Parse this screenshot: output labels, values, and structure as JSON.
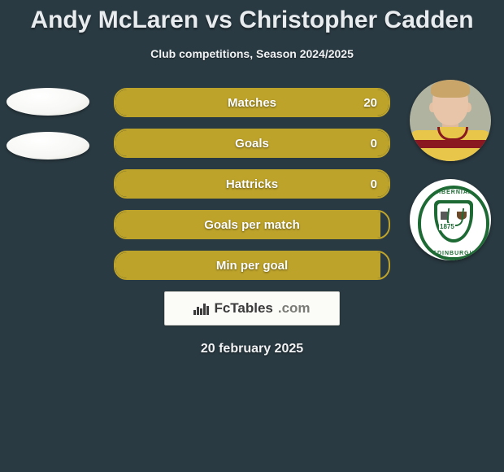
{
  "title": "Andy McLaren vs Christopher Cadden",
  "subtitle": "Club competitions, Season 2024/2025",
  "date": "20 february 2025",
  "branding": {
    "name": "FcTables",
    "suffix": ".com"
  },
  "colors": {
    "background": "#2a3a42",
    "bar_fill": "#bda32a",
    "bar_border": "#bda32a",
    "text": "#ffffff"
  },
  "crest": {
    "top_text": "HIBERNIAN",
    "bottom_text": "EDINBURGH",
    "year": "1875"
  },
  "stats": [
    {
      "label": "Matches",
      "value": "20",
      "fill_pct": 100
    },
    {
      "label": "Goals",
      "value": "0",
      "fill_pct": 100
    },
    {
      "label": "Hattricks",
      "value": "0",
      "fill_pct": 100
    },
    {
      "label": "Goals per match",
      "value": "",
      "fill_pct": 97
    },
    {
      "label": "Min per goal",
      "value": "",
      "fill_pct": 97
    }
  ]
}
